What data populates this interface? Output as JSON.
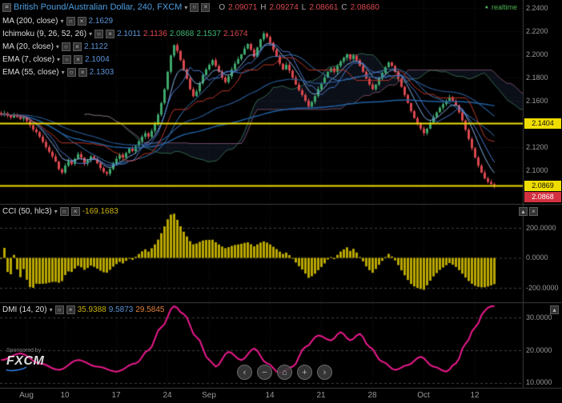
{
  "window": {
    "realtime": "realtime"
  },
  "header": {
    "title": "British Pound/Australian Dollar, 240, FXCM",
    "caret": "▾",
    "ohlc": {
      "o_label": "O",
      "o_value": "2.09071",
      "h_label": "H",
      "h_value": "2.09274",
      "l_label": "L",
      "l_value": "2.08661",
      "c_label": "C",
      "c_value": "2.08680"
    }
  },
  "icons": {
    "menu": "≡",
    "properties": "○",
    "close": "×",
    "collapse": "▴",
    "dot": "●"
  },
  "studies": {
    "ma200": {
      "label": "MA (200, close)",
      "caret": "▾",
      "value": "2.1629"
    },
    "ichimoku": {
      "label": "Ichimoku (9, 26, 52, 26)",
      "caret": "▾",
      "v1": "2.1011",
      "v2": "2.1136",
      "v3": "2.0868",
      "v4": "2.1537",
      "v5": "2.1674"
    },
    "ma20": {
      "label": "MA (20, close)",
      "caret": "▾",
      "value": "2.1122"
    },
    "ema7": {
      "label": "EMA (7, close)",
      "caret": "▾",
      "value": "2.1004"
    },
    "ema55": {
      "label": "EMA (55, close)",
      "caret": "▾",
      "value": "2.1303"
    },
    "cci": {
      "label": "CCI (50, hlc3)",
      "caret": "▾",
      "value": "-169.1683"
    },
    "dmi": {
      "label": "DMI (14, 20)",
      "caret": "▾",
      "v1": "35.9388",
      "v2": "9.5873",
      "v3": "29.5845"
    }
  },
  "scales": {
    "main": [
      "2.2400",
      "2.2200",
      "2.2000",
      "2.1800",
      "2.1600",
      "2.1200",
      "2.1000"
    ],
    "cci": [
      "200.0000",
      "0.0000",
      "-200.0000"
    ],
    "dmi": [
      "30.0000",
      "20.0000",
      "10.0000"
    ]
  },
  "price_boxes": {
    "resistance": "2.1404",
    "support": "2.0869",
    "last": "2.0868"
  },
  "nav": [
    "‹",
    "−",
    "⌂",
    "+",
    "›"
  ],
  "sponsor": {
    "line1": "Sponsored by",
    "brand": "FXCM"
  },
  "colors": {
    "up": "#3fa66b",
    "down": "#d9484e",
    "level": "#f0dd00",
    "cci": "#b9a700",
    "dmi": "#ea1a8c",
    "ma200": "#1f5f9f",
    "ma20": "#3d7dbf",
    "ema7": "#86b3e8",
    "ema55": "#28558f",
    "tenkan": "#4b7bd4",
    "kijun": "#c0392b",
    "spanA": "#3f7f5f",
    "spanB": "#8f5f7f",
    "cloud": "rgba(90,120,200,0.12)",
    "accent_blue": "#4c9ce0",
    "realtime_green": "#4caf50"
  },
  "chart_data": [
    {
      "type": "candlestick",
      "title": "British Pound/Australian Dollar, 240, FXCM",
      "current_ohlc": {
        "open": 2.09071,
        "high": 2.09274,
        "low": 2.08661,
        "close": 2.0868
      },
      "ylim": [
        2.08,
        2.25
      ],
      "y_ticks": [
        2.24,
        2.22,
        2.2,
        2.18,
        2.16,
        2.14,
        2.12,
        2.1
      ],
      "x_tick_labels": [
        "Aug",
        "10",
        "17",
        "24",
        "Sep",
        "14",
        "21",
        "28",
        "Oct",
        "12"
      ],
      "x_tick_indices": [
        8,
        20,
        36,
        52,
        65,
        84,
        100,
        116,
        132,
        148
      ],
      "horizontal_levels": [
        2.1404,
        2.0869
      ],
      "overlays": {
        "ma200": 2.1629,
        "ma20": 2.1122,
        "ema7": 2.1004,
        "ema55": 2.1303,
        "ichimoku": [
          2.1011,
          2.1136,
          2.0868,
          2.1537,
          2.1674
        ]
      },
      "closes": [
        2.148,
        2.1492,
        2.147,
        2.1455,
        2.1478,
        2.146,
        2.1442,
        2.145,
        2.1425,
        2.139,
        2.1352,
        2.133,
        2.129,
        2.1245,
        2.12,
        2.116,
        2.112,
        2.1075,
        2.101,
        2.098,
        2.104,
        2.108,
        2.1055,
        2.11,
        2.114,
        2.111,
        2.106,
        2.1085,
        2.112,
        2.1095,
        2.106,
        2.102,
        2.0985,
        2.097,
        2.101,
        2.106,
        2.11,
        2.1135,
        2.111,
        2.115,
        2.119,
        2.1165,
        2.121,
        2.125,
        2.129,
        2.132,
        2.129,
        2.134,
        2.14,
        2.148,
        2.158,
        2.17,
        2.185,
        2.199,
        2.208,
        2.203,
        2.195,
        2.187,
        2.179,
        2.17,
        2.164,
        2.168,
        2.175,
        2.182,
        2.187,
        2.191,
        2.195,
        2.19,
        2.185,
        2.18,
        2.176,
        2.181,
        2.187,
        2.192,
        2.196,
        2.2,
        2.205,
        2.209,
        2.204,
        2.198,
        2.206,
        2.213,
        2.218,
        2.215,
        2.21,
        2.204,
        2.198,
        2.192,
        2.187,
        2.191,
        2.186,
        2.18,
        2.174,
        2.169,
        2.165,
        2.16,
        2.155,
        2.159,
        2.164,
        2.17,
        2.175,
        2.18,
        2.185,
        2.188,
        2.185,
        2.19,
        2.194,
        2.197,
        2.2,
        2.196,
        2.199,
        2.195,
        2.19,
        2.185,
        2.179,
        2.174,
        2.17,
        2.174,
        2.179,
        2.184,
        2.189,
        2.193,
        2.19,
        2.185,
        2.179,
        2.172,
        2.165,
        2.158,
        2.151,
        2.145,
        2.14,
        2.136,
        2.132,
        2.136,
        2.141,
        2.146,
        2.15,
        2.154,
        2.157,
        2.16,
        2.163,
        2.16,
        2.156,
        2.15,
        2.143,
        2.135,
        2.127,
        2.119,
        2.111,
        2.104,
        2.098,
        2.093,
        2.09,
        2.088,
        2.0868
      ]
    },
    {
      "type": "bar",
      "title": "CCI (50, hlc3)",
      "current": -169.1683,
      "y_ticks": [
        200,
        0,
        -200
      ],
      "period": 50,
      "computed_from": "closes"
    },
    {
      "type": "line",
      "title": "DMI (14, 20)",
      "current": [
        35.9388,
        9.5873,
        29.5845
      ],
      "y_ticks": [
        30,
        20,
        10
      ],
      "points": [
        [
          0,
          17
        ],
        [
          6,
          19
        ],
        [
          12,
          16
        ],
        [
          18,
          14
        ],
        [
          24,
          17
        ],
        [
          30,
          15
        ],
        [
          36,
          13.5
        ],
        [
          42,
          16
        ],
        [
          46,
          20
        ],
        [
          50,
          27
        ],
        [
          54,
          33.5
        ],
        [
          57,
          31
        ],
        [
          61,
          24
        ],
        [
          65,
          17
        ],
        [
          67,
          15
        ],
        [
          71,
          19.5
        ],
        [
          75,
          17
        ],
        [
          79,
          20.5
        ],
        [
          83,
          16
        ],
        [
          87,
          13
        ],
        [
          91,
          15
        ],
        [
          95,
          21
        ],
        [
          99,
          24.5
        ],
        [
          103,
          23
        ],
        [
          106,
          25.5
        ],
        [
          109,
          23
        ],
        [
          112,
          25
        ],
        [
          115,
          21
        ],
        [
          119,
          16.5
        ],
        [
          123,
          14
        ],
        [
          127,
          15.5
        ],
        [
          131,
          18
        ],
        [
          135,
          15
        ],
        [
          139,
          13.5
        ],
        [
          142,
          16
        ],
        [
          145,
          22
        ],
        [
          148,
          27
        ],
        [
          151,
          32
        ],
        [
          154,
          35.9
        ]
      ]
    }
  ]
}
